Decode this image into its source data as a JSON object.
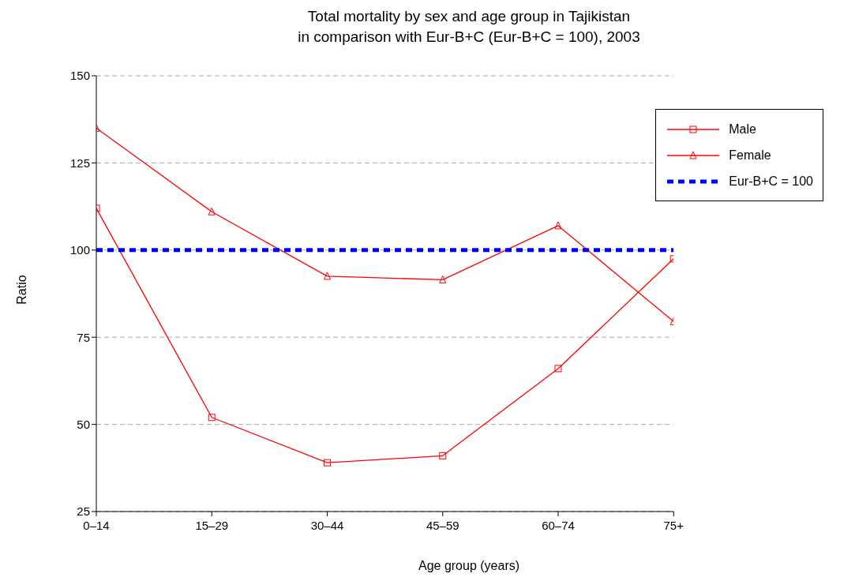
{
  "chart_data": {
    "type": "line",
    "title": "Total mortality by sex and age group in Tajikistan\nin comparison with Eur-B+C (Eur-B+C = 100), 2003",
    "xlabel": "Age group (years)",
    "ylabel": "Ratio",
    "categories": [
      "0–14",
      "15–29",
      "30–44",
      "45–59",
      "60–74",
      "75+"
    ],
    "series": [
      {
        "name": "Male",
        "color": "#ff0000",
        "marker": "square",
        "line_style": "solid",
        "values": [
          112,
          52,
          39,
          41,
          66,
          97.5
        ]
      },
      {
        "name": "Female",
        "color": "#ff0000",
        "marker": "triangle",
        "line_style": "solid",
        "values": [
          135,
          111,
          92.5,
          91.5,
          107,
          79.5
        ]
      },
      {
        "name": "Eur-B+C = 100",
        "color": "#0000ff",
        "marker": "none",
        "line_style": "dashed",
        "values": [
          100,
          100,
          100,
          100,
          100,
          100
        ]
      }
    ],
    "ylim": [
      25,
      150
    ],
    "yticks": [
      25,
      50,
      75,
      100,
      125,
      150
    ],
    "grid": "y",
    "legend": "top right"
  }
}
